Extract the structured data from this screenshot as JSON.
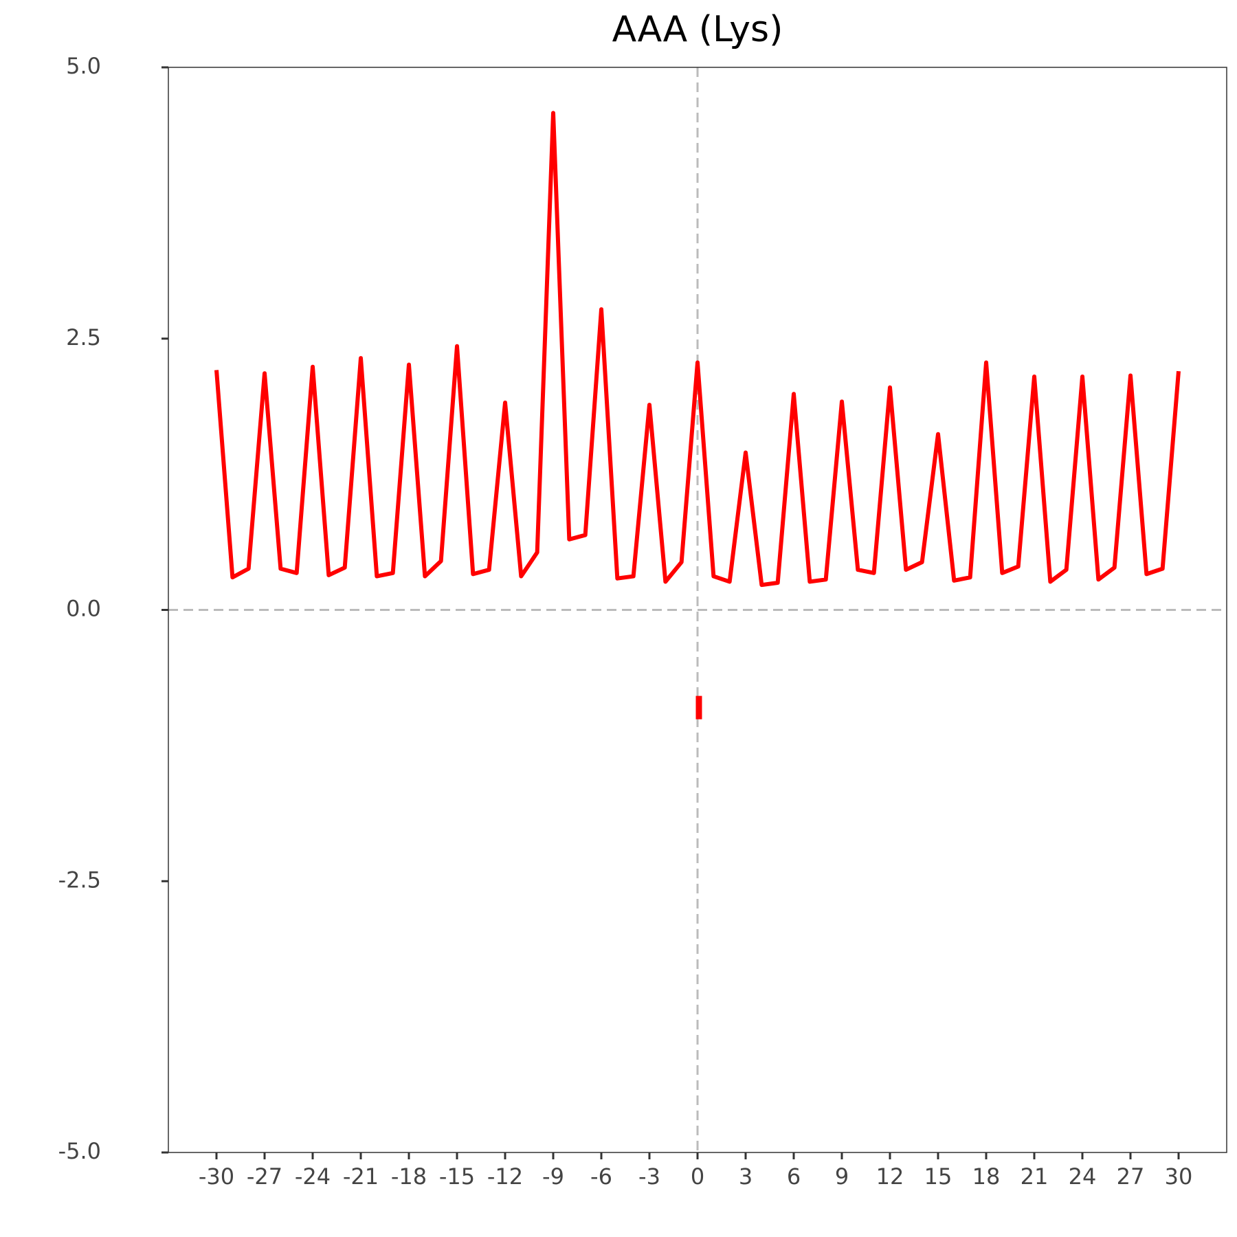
{
  "chart_data": {
    "type": "line",
    "title": "AAA (Lys)",
    "x": [
      -30,
      -29,
      -28,
      -27,
      -26,
      -25,
      -24,
      -23,
      -22,
      -21,
      -20,
      -19,
      -18,
      -17,
      -16,
      -15,
      -14,
      -13,
      -12,
      -11,
      -10,
      -9,
      -8,
      -7,
      -6,
      -5,
      -4,
      -3,
      -2,
      -1,
      0,
      1,
      2,
      3,
      4,
      5,
      6,
      7,
      8,
      9,
      10,
      11,
      12,
      13,
      14,
      15,
      16,
      17,
      18,
      19,
      20,
      21,
      22,
      23,
      24,
      25,
      26,
      27,
      28,
      29,
      30
    ],
    "series": [
      {
        "color": "#ff0000",
        "values": [
          2.21,
          0.3,
          0.38,
          2.18,
          0.38,
          0.34,
          2.24,
          0.32,
          0.39,
          2.32,
          0.31,
          0.34,
          2.26,
          0.31,
          0.45,
          2.43,
          0.33,
          0.37,
          1.91,
          0.31,
          0.53,
          4.58,
          0.65,
          0.69,
          2.77,
          0.29,
          0.31,
          1.89,
          0.26,
          0.44,
          2.28,
          0.31,
          0.26,
          1.45,
          0.23,
          0.25,
          1.99,
          0.26,
          0.28,
          1.92,
          0.37,
          0.34,
          2.05,
          0.37,
          0.44,
          1.62,
          0.27,
          0.3,
          2.28,
          0.34,
          0.4,
          2.15,
          0.26,
          0.37,
          2.15,
          0.28,
          0.39,
          2.16,
          0.33,
          0.38,
          2.2
        ]
      },
      {
        "color": "#ff0000",
        "marker": "vline",
        "values": [
          null,
          null,
          null,
          null,
          null,
          null,
          null,
          null,
          null,
          null,
          null,
          null,
          null,
          null,
          null,
          null,
          null,
          null,
          null,
          null,
          null,
          null,
          null,
          null,
          null,
          null,
          null,
          null,
          null,
          null,
          -0.9,
          null,
          null,
          null,
          null,
          null,
          null,
          null,
          null,
          null,
          null,
          null,
          null,
          null,
          null,
          null,
          null,
          null,
          null,
          null,
          null,
          null,
          null,
          null,
          null,
          null,
          null,
          null,
          null,
          null,
          null
        ]
      }
    ],
    "xlim": [
      -33,
      33
    ],
    "xticks": [
      -30,
      -27,
      -24,
      -21,
      -18,
      -15,
      -12,
      -9,
      -6,
      -3,
      0,
      3,
      6,
      9,
      12,
      15,
      18,
      21,
      24,
      27,
      30
    ],
    "ylim": [
      -5,
      5
    ],
    "yticks": [
      {
        "value": -5,
        "label": "-5.0"
      },
      {
        "value": -2.5,
        "label": "-2.5"
      },
      {
        "value": 0,
        "label": "0.0"
      },
      {
        "value": 2.5,
        "label": "2.5"
      },
      {
        "value": 5,
        "label": "5.0"
      }
    ],
    "reference_lines": {
      "x": 0,
      "y": 0
    }
  }
}
